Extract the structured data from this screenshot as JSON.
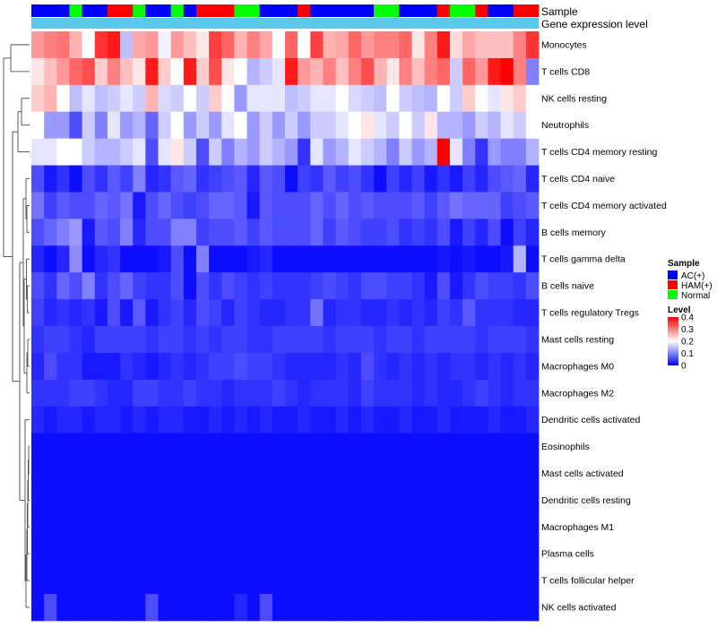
{
  "chart_data": {
    "type": "heatmap",
    "title": "",
    "annotation_tracks": [
      "Sample",
      "Gene expression level"
    ],
    "sample_legend": {
      "title": "Sample",
      "entries": [
        {
          "label": "AC(+)",
          "color": "#0000ff"
        },
        {
          "label": "HAM(+)",
          "color": "#ff0000"
        },
        {
          "label": "Normal",
          "color": "#00ff00"
        }
      ]
    },
    "level_legend": {
      "title": "Level",
      "ticks": [
        "0.4",
        "0.3",
        "0.2",
        "0.1",
        "0"
      ],
      "range": [
        0,
        0.4
      ],
      "colors": {
        "low": "#0000ff",
        "mid": "#ffffff",
        "high": "#ff0000",
        "mid_value": 0.2
      }
    },
    "gene_expression_color": "#5ac8ea",
    "sample_groups": [
      "AC(+)",
      "AC(+)",
      "AC(+)",
      "Normal",
      "AC(+)",
      "AC(+)",
      "HAM(+)",
      "HAM(+)",
      "Normal",
      "AC(+)",
      "AC(+)",
      "Normal",
      "AC(+)",
      "HAM(+)",
      "HAM(+)",
      "HAM(+)",
      "Normal",
      "Normal",
      "AC(+)",
      "AC(+)",
      "AC(+)",
      "HAM(+)",
      "AC(+)",
      "AC(+)",
      "AC(+)",
      "AC(+)",
      "AC(+)",
      "Normal",
      "Normal",
      "AC(+)",
      "AC(+)",
      "AC(+)",
      "HAM(+)",
      "Normal",
      "Normal",
      "HAM(+)",
      "AC(+)",
      "AC(+)",
      "HAM(+)",
      "HAM(+)"
    ],
    "rows": [
      {
        "label": "Monocytes",
        "values": [
          0.28,
          0.3,
          0.31,
          0.26,
          0.2,
          0.36,
          0.38,
          0.15,
          0.27,
          0.28,
          0.19,
          0.28,
          0.25,
          0.22,
          0.35,
          0.32,
          0.26,
          0.3,
          0.27,
          0.2,
          0.32,
          0.2,
          0.35,
          0.26,
          0.27,
          0.32,
          0.28,
          0.3,
          0.3,
          0.32,
          0.22,
          0.3,
          0.38,
          0.23,
          0.27,
          0.25,
          0.25,
          0.25,
          0.3,
          0.36
        ]
      },
      {
        "label": "T cells CD8",
        "values": [
          0.22,
          0.25,
          0.28,
          0.32,
          0.34,
          0.24,
          0.3,
          0.25,
          0.22,
          0.38,
          0.24,
          0.2,
          0.38,
          0.24,
          0.34,
          0.22,
          0.2,
          0.14,
          0.16,
          0.18,
          0.38,
          0.28,
          0.26,
          0.3,
          0.25,
          0.3,
          0.34,
          0.26,
          0.22,
          0.3,
          0.25,
          0.3,
          0.32,
          0.16,
          0.32,
          0.28,
          0.38,
          0.4,
          0.3,
          0.1
        ]
      },
      {
        "label": "NK cells resting",
        "values": [
          0.24,
          0.26,
          0.2,
          0.15,
          0.18,
          0.15,
          0.16,
          0.18,
          0.16,
          0.26,
          0.17,
          0.16,
          0.2,
          0.16,
          0.24,
          0.2,
          0.12,
          0.18,
          0.18,
          0.18,
          0.15,
          0.16,
          0.18,
          0.18,
          0.2,
          0.17,
          0.16,
          0.15,
          0.2,
          0.16,
          0.15,
          0.14,
          0.2,
          0.16,
          0.24,
          0.2,
          0.18,
          0.22,
          0.24,
          0.2
        ]
      },
      {
        "label": "Neutrophils",
        "values": [
          0.2,
          0.12,
          0.12,
          0.06,
          0.16,
          0.1,
          0.18,
          0.12,
          0.14,
          0.08,
          0.16,
          0.2,
          0.12,
          0.16,
          0.12,
          0.18,
          0.2,
          0.12,
          0.16,
          0.12,
          0.16,
          0.12,
          0.16,
          0.16,
          0.18,
          0.2,
          0.22,
          0.18,
          0.16,
          0.2,
          0.16,
          0.22,
          0.14,
          0.14,
          0.12,
          0.16,
          0.14,
          0.18,
          0.16,
          0.2
        ]
      },
      {
        "label": "T cells CD4 memory resting",
        "values": [
          0.18,
          0.18,
          0.2,
          0.2,
          0.16,
          0.14,
          0.14,
          0.16,
          0.18,
          0.06,
          0.18,
          0.22,
          0.16,
          0.06,
          0.16,
          0.1,
          0.14,
          0.12,
          0.16,
          0.14,
          0.12,
          0.04,
          0.18,
          0.12,
          0.14,
          0.18,
          0.16,
          0.14,
          0.1,
          0.16,
          0.12,
          0.14,
          0.4,
          0.18,
          0.1,
          0.04,
          0.12,
          0.1,
          0.1,
          0.14
        ]
      },
      {
        "label": "T cells CD4 naive",
        "values": [
          0.06,
          0.02,
          0.04,
          0.01,
          0.06,
          0.04,
          0.07,
          0.05,
          0.1,
          0.03,
          0.04,
          0.07,
          0.08,
          0.04,
          0.05,
          0.06,
          0.07,
          0.03,
          0.07,
          0.06,
          0.01,
          0.05,
          0.04,
          0.07,
          0.05,
          0.06,
          0.04,
          0.01,
          0.05,
          0.03,
          0.05,
          0.02,
          0.04,
          0.02,
          0.05,
          0.03,
          0.06,
          0.07,
          0.08,
          0.03
        ]
      },
      {
        "label": "T cells CD4 memory activated",
        "values": [
          0.09,
          0.05,
          0.07,
          0.06,
          0.06,
          0.08,
          0.07,
          0.09,
          0.02,
          0.06,
          0.08,
          0.06,
          0.05,
          0.06,
          0.08,
          0.08,
          0.07,
          0.02,
          0.07,
          0.06,
          0.06,
          0.06,
          0.08,
          0.06,
          0.08,
          0.06,
          0.07,
          0.06,
          0.06,
          0.06,
          0.07,
          0.05,
          0.07,
          0.09,
          0.08,
          0.08,
          0.08,
          0.05,
          0.06,
          0.07
        ]
      },
      {
        "label": "B cells memory",
        "values": [
          0.06,
          0.08,
          0.1,
          0.12,
          0.02,
          0.07,
          0.06,
          0.1,
          0.03,
          0.06,
          0.06,
          0.1,
          0.1,
          0.05,
          0.06,
          0.06,
          0.07,
          0.05,
          0.07,
          0.06,
          0.06,
          0.06,
          0.08,
          0.05,
          0.07,
          0.06,
          0.05,
          0.05,
          0.06,
          0.04,
          0.05,
          0.04,
          0.06,
          0.02,
          0.05,
          0.03,
          0.06,
          0.01,
          0.05,
          0.03
        ]
      },
      {
        "label": "T cells gamma delta",
        "values": [
          0.03,
          0.01,
          0.03,
          0.11,
          0.01,
          0.03,
          0.04,
          0.01,
          0.01,
          0.01,
          0.02,
          0.06,
          0.01,
          0.1,
          0.01,
          0.01,
          0.01,
          0.02,
          0.03,
          0.01,
          0.01,
          0.01,
          0.01,
          0.01,
          0.01,
          0.01,
          0.01,
          0.01,
          0.01,
          0.01,
          0.01,
          0.01,
          0.02,
          0.01,
          0.02,
          0.01,
          0.01,
          0.02,
          0.14,
          0.01
        ]
      },
      {
        "label": "B cells naive",
        "values": [
          0.06,
          0.04,
          0.08,
          0.06,
          0.1,
          0.04,
          0.06,
          0.08,
          0.05,
          0.04,
          0.04,
          0.06,
          0.01,
          0.06,
          0.04,
          0.06,
          0.05,
          0.04,
          0.05,
          0.04,
          0.04,
          0.04,
          0.05,
          0.06,
          0.05,
          0.04,
          0.06,
          0.06,
          0.05,
          0.05,
          0.04,
          0.02,
          0.06,
          0.02,
          0.04,
          0.06,
          0.05,
          0.05,
          0.04,
          0.06
        ]
      },
      {
        "label": "T cells regulatory  Tregs",
        "values": [
          0.05,
          0.03,
          0.04,
          0.03,
          0.04,
          0.02,
          0.06,
          0.02,
          0.07,
          0.02,
          0.04,
          0.05,
          0.03,
          0.06,
          0.05,
          0.03,
          0.05,
          0.04,
          0.03,
          0.03,
          0.04,
          0.04,
          0.09,
          0.03,
          0.04,
          0.04,
          0.03,
          0.03,
          0.04,
          0.03,
          0.04,
          0.03,
          0.05,
          0.04,
          0.07,
          0.04,
          0.04,
          0.04,
          0.03,
          0.03
        ]
      },
      {
        "label": "Mast cells resting",
        "values": [
          0.04,
          0.05,
          0.05,
          0.04,
          0.03,
          0.05,
          0.05,
          0.05,
          0.05,
          0.04,
          0.05,
          0.05,
          0.04,
          0.05,
          0.04,
          0.05,
          0.05,
          0.04,
          0.04,
          0.05,
          0.05,
          0.05,
          0.05,
          0.04,
          0.05,
          0.05,
          0.05,
          0.04,
          0.05,
          0.05,
          0.04,
          0.05,
          0.05,
          0.05,
          0.05,
          0.04,
          0.05,
          0.05,
          0.05,
          0.04
        ]
      },
      {
        "label": "Macrophages M0",
        "values": [
          0.03,
          0.06,
          0.04,
          0.04,
          0.02,
          0.02,
          0.02,
          0.04,
          0.03,
          0.02,
          0.03,
          0.04,
          0.03,
          0.04,
          0.05,
          0.05,
          0.06,
          0.05,
          0.05,
          0.04,
          0.03,
          0.03,
          0.03,
          0.03,
          0.04,
          0.03,
          0.06,
          0.04,
          0.03,
          0.04,
          0.03,
          0.04,
          0.03,
          0.04,
          0.04,
          0.03,
          0.04,
          0.03,
          0.04,
          0.03
        ]
      },
      {
        "label": "Macrophages M2",
        "values": [
          0.04,
          0.04,
          0.04,
          0.05,
          0.05,
          0.04,
          0.03,
          0.03,
          0.05,
          0.05,
          0.04,
          0.04,
          0.05,
          0.04,
          0.04,
          0.03,
          0.04,
          0.04,
          0.04,
          0.05,
          0.04,
          0.03,
          0.04,
          0.04,
          0.04,
          0.03,
          0.05,
          0.04,
          0.04,
          0.04,
          0.03,
          0.04,
          0.03,
          0.03,
          0.04,
          0.05,
          0.04,
          0.03,
          0.04,
          0.04
        ]
      },
      {
        "label": "Dendritic cells activated",
        "values": [
          0.03,
          0.02,
          0.03,
          0.03,
          0.02,
          0.03,
          0.03,
          0.02,
          0.03,
          0.02,
          0.03,
          0.03,
          0.02,
          0.02,
          0.03,
          0.02,
          0.03,
          0.02,
          0.03,
          0.02,
          0.02,
          0.03,
          0.02,
          0.02,
          0.03,
          0.02,
          0.03,
          0.02,
          0.02,
          0.03,
          0.02,
          0.02,
          0.03,
          0.02,
          0.02,
          0.02,
          0.03,
          0.02,
          0.02,
          0.03
        ]
      },
      {
        "label": "Eosinophils",
        "values": [
          0.01,
          0.01,
          0.01,
          0.01,
          0.01,
          0.01,
          0.01,
          0.01,
          0.01,
          0.01,
          0.01,
          0.01,
          0.01,
          0.01,
          0.01,
          0.01,
          0.01,
          0.01,
          0.01,
          0.01,
          0.01,
          0.01,
          0.01,
          0.01,
          0.01,
          0.01,
          0.01,
          0.01,
          0.01,
          0.01,
          0.01,
          0.01,
          0.01,
          0.01,
          0.01,
          0.01,
          0.01,
          0.01,
          0.01,
          0.01
        ]
      },
      {
        "label": "Mast cells activated",
        "values": [
          0.01,
          0.01,
          0.01,
          0.01,
          0.01,
          0.01,
          0.01,
          0.01,
          0.01,
          0.01,
          0.01,
          0.01,
          0.01,
          0.01,
          0.01,
          0.01,
          0.01,
          0.01,
          0.01,
          0.01,
          0.01,
          0.01,
          0.01,
          0.01,
          0.01,
          0.01,
          0.01,
          0.01,
          0.01,
          0.01,
          0.01,
          0.01,
          0.01,
          0.01,
          0.01,
          0.01,
          0.01,
          0.01,
          0.01,
          0.01
        ]
      },
      {
        "label": "Dendritic cells resting",
        "values": [
          0.01,
          0.01,
          0.01,
          0.01,
          0.01,
          0.01,
          0.01,
          0.01,
          0.01,
          0.01,
          0.01,
          0.01,
          0.01,
          0.01,
          0.01,
          0.01,
          0.01,
          0.01,
          0.01,
          0.01,
          0.01,
          0.01,
          0.01,
          0.01,
          0.01,
          0.01,
          0.01,
          0.01,
          0.01,
          0.01,
          0.01,
          0.01,
          0.01,
          0.01,
          0.01,
          0.01,
          0.01,
          0.01,
          0.01,
          0.01
        ]
      },
      {
        "label": "Macrophages M1",
        "values": [
          0.01,
          0.01,
          0.01,
          0.01,
          0.01,
          0.01,
          0.01,
          0.01,
          0.01,
          0.01,
          0.01,
          0.01,
          0.01,
          0.01,
          0.01,
          0.01,
          0.01,
          0.01,
          0.01,
          0.01,
          0.01,
          0.01,
          0.01,
          0.01,
          0.01,
          0.01,
          0.01,
          0.01,
          0.01,
          0.01,
          0.01,
          0.01,
          0.01,
          0.01,
          0.01,
          0.01,
          0.01,
          0.01,
          0.01,
          0.01
        ]
      },
      {
        "label": "Plasma cells",
        "values": [
          0.01,
          0.01,
          0.01,
          0.01,
          0.01,
          0.01,
          0.01,
          0.01,
          0.01,
          0.01,
          0.01,
          0.01,
          0.01,
          0.01,
          0.01,
          0.01,
          0.01,
          0.01,
          0.01,
          0.01,
          0.01,
          0.01,
          0.01,
          0.01,
          0.01,
          0.01,
          0.01,
          0.01,
          0.01,
          0.01,
          0.01,
          0.01,
          0.01,
          0.01,
          0.01,
          0.01,
          0.01,
          0.01,
          0.01,
          0.01
        ]
      },
      {
        "label": "T cells follicular helper",
        "values": [
          0.01,
          0.01,
          0.01,
          0.01,
          0.01,
          0.01,
          0.01,
          0.01,
          0.01,
          0.01,
          0.01,
          0.01,
          0.01,
          0.01,
          0.01,
          0.01,
          0.01,
          0.01,
          0.01,
          0.01,
          0.01,
          0.01,
          0.01,
          0.01,
          0.01,
          0.01,
          0.01,
          0.01,
          0.01,
          0.01,
          0.01,
          0.01,
          0.01,
          0.01,
          0.01,
          0.01,
          0.01,
          0.01,
          0.01,
          0.01
        ]
      },
      {
        "label": "NK cells activated",
        "values": [
          0.01,
          0.06,
          0.01,
          0.01,
          0.01,
          0.01,
          0.01,
          0.01,
          0.01,
          0.06,
          0.01,
          0.01,
          0.01,
          0.01,
          0.01,
          0.01,
          0.03,
          0.01,
          0.06,
          0.01,
          0.01,
          0.01,
          0.01,
          0.01,
          0.01,
          0.01,
          0.01,
          0.01,
          0.01,
          0.01,
          0.01,
          0.01,
          0.01,
          0.01,
          0.01,
          0.01,
          0.01,
          0.01,
          0.01,
          0.01
        ]
      }
    ]
  }
}
